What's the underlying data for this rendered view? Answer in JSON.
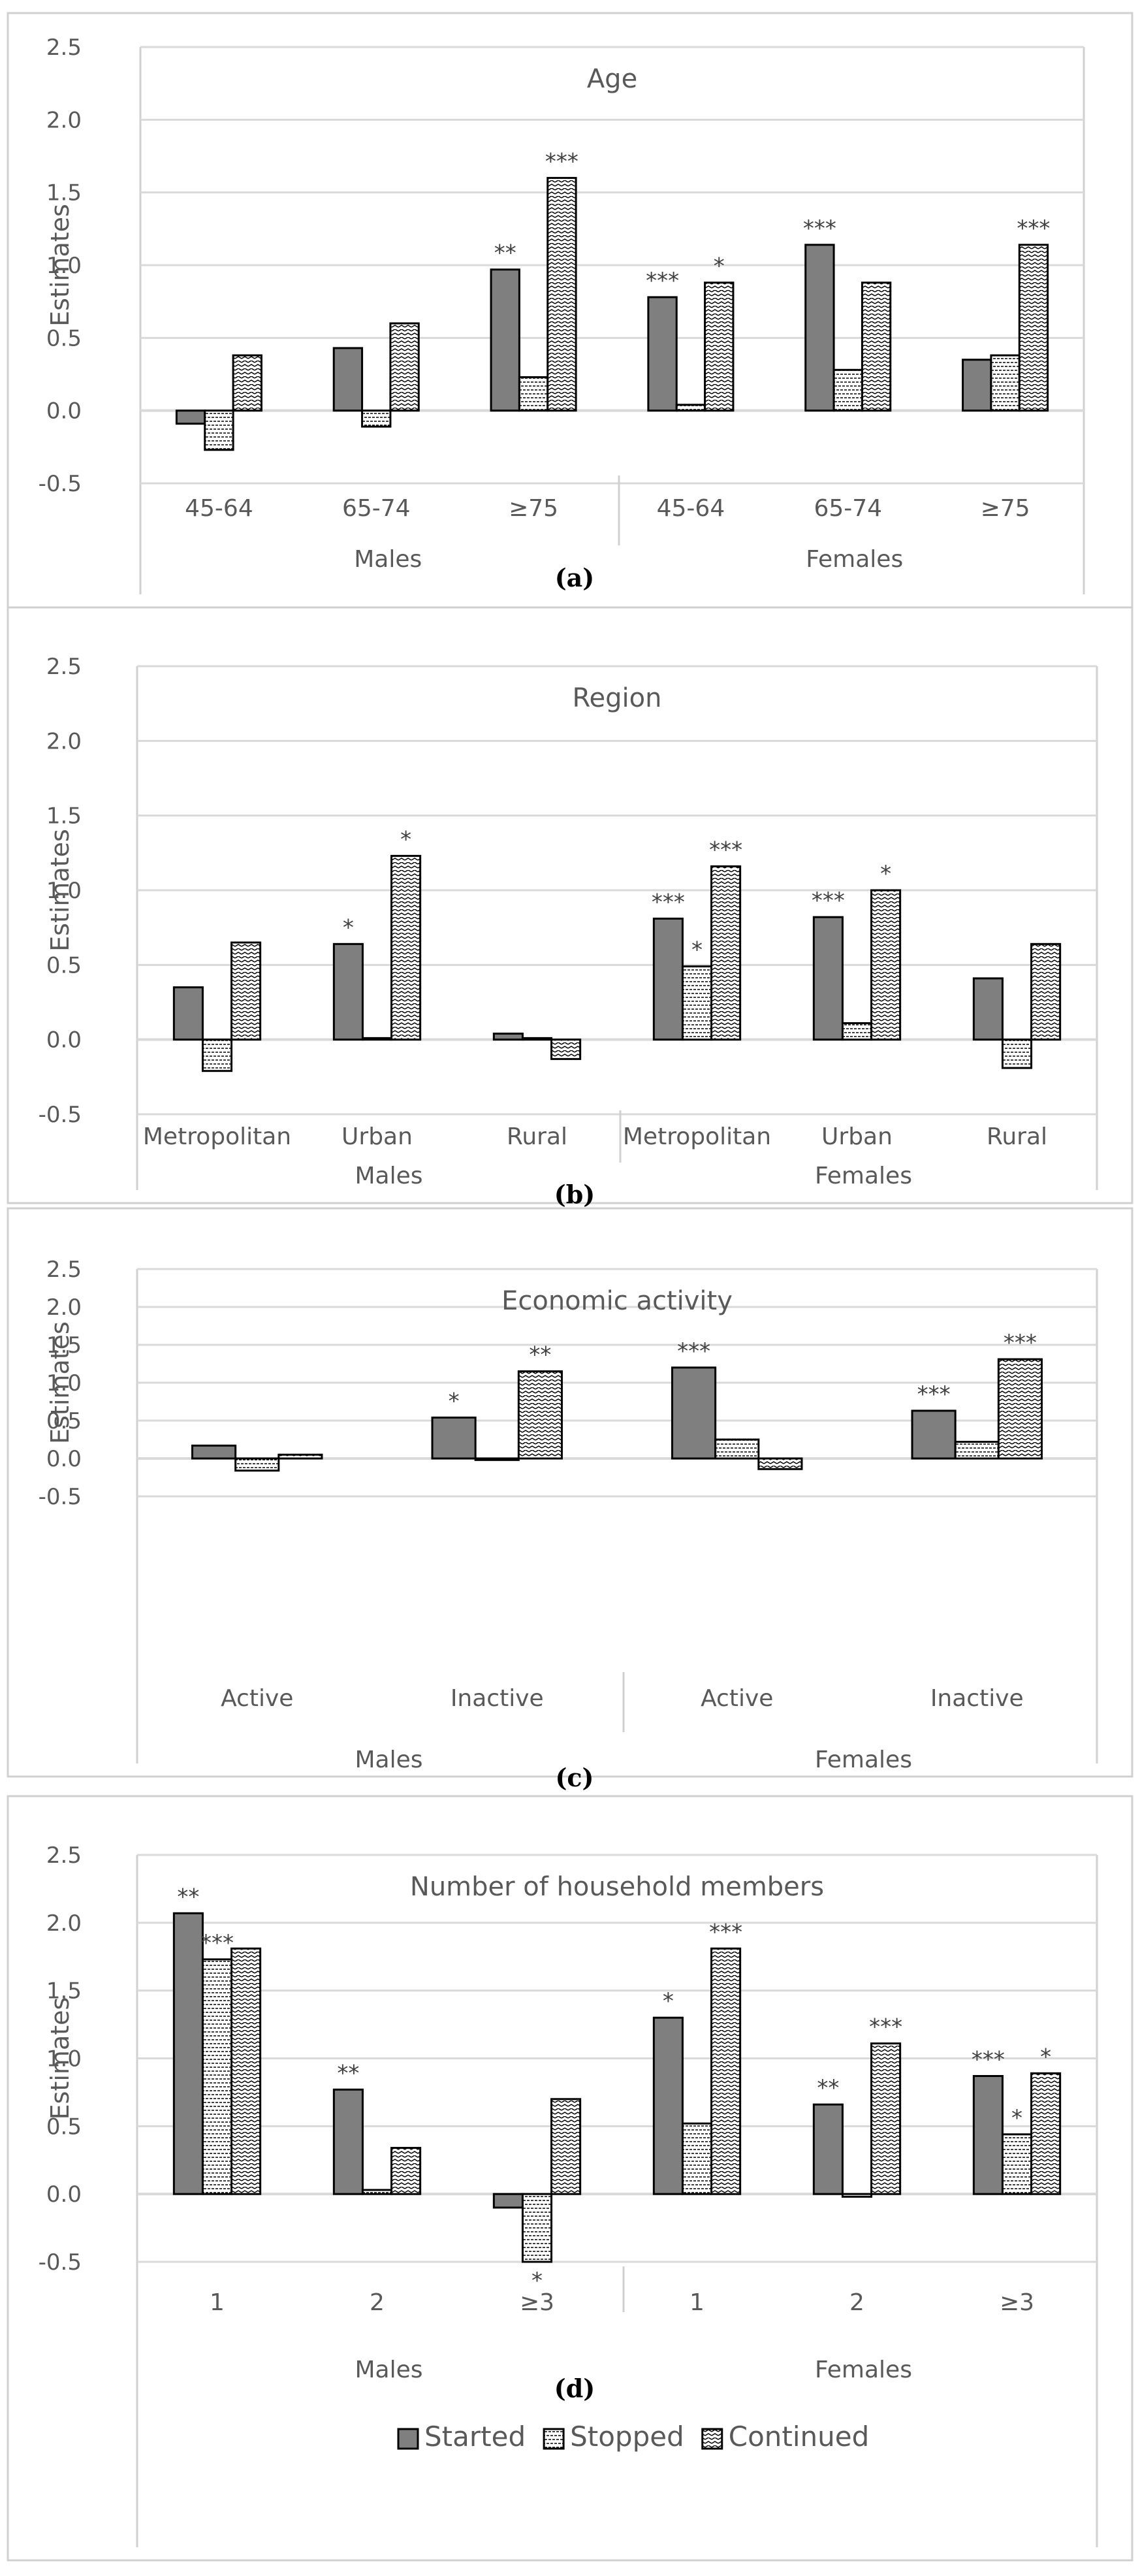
{
  "series": [
    "Started",
    "Stopped",
    "Continued"
  ],
  "legend_entries": [
    "Started",
    "Stopped",
    "Continued"
  ],
  "colors": {
    "started": "#7f7f7f",
    "frame": "#d0d0d0",
    "grid": "#d9d9d9",
    "text": "#595959"
  },
  "chart_data": [
    {
      "type": "bar",
      "title": "Age",
      "sublabel": "(a)",
      "ylabel": "Estimates",
      "ylim": [
        -0.5,
        2.5
      ],
      "yticks": [
        "2.5",
        "2.0",
        "1.5",
        "1.0",
        "0.5",
        "0.0",
        "-0.5"
      ],
      "groups": [
        "Males",
        "Females"
      ],
      "categories": [
        "45-64",
        "65-74",
        "≥75",
        "45-64",
        "65-74",
        "≥75"
      ],
      "values": [
        [
          -0.09,
          -0.27,
          0.38
        ],
        [
          0.43,
          -0.11,
          0.6
        ],
        [
          0.97,
          0.23,
          1.6
        ],
        [
          0.78,
          0.04,
          0.88
        ],
        [
          1.14,
          0.28,
          0.88
        ],
        [
          0.35,
          0.38,
          1.14
        ]
      ],
      "sig": [
        [
          "",
          "",
          ""
        ],
        [
          "",
          "",
          ""
        ],
        [
          "**",
          "",
          "***"
        ],
        [
          "***",
          "",
          "*"
        ],
        [
          "***",
          "",
          ""
        ],
        [
          "",
          "",
          "***"
        ]
      ]
    },
    {
      "type": "bar",
      "title": "Region",
      "sublabel": "(b)",
      "ylabel": "Estimates",
      "ylim": [
        -0.5,
        2.5
      ],
      "yticks": [
        "2.5",
        "2.0",
        "1.5",
        "1.0",
        "0.5",
        "0.0",
        "-0.5"
      ],
      "groups": [
        "Males",
        "Females"
      ],
      "categories": [
        "Metropolitan",
        "Urban",
        "Rural",
        "Metropolitan",
        "Urban",
        "Rural"
      ],
      "values": [
        [
          0.35,
          -0.21,
          0.65
        ],
        [
          0.64,
          0.01,
          1.23
        ],
        [
          0.04,
          0.01,
          -0.13
        ],
        [
          0.81,
          0.49,
          1.16
        ],
        [
          0.82,
          0.11,
          1.0
        ],
        [
          0.41,
          -0.19,
          0.64
        ]
      ],
      "sig": [
        [
          "",
          "",
          ""
        ],
        [
          "*",
          "",
          "*"
        ],
        [
          "",
          "",
          ""
        ],
        [
          "***",
          "*",
          "***"
        ],
        [
          "***",
          "",
          "*"
        ],
        [
          "",
          "",
          ""
        ]
      ]
    },
    {
      "type": "bar",
      "title": "Economic activity",
      "sublabel": "(c)",
      "ylabel": "Estimates",
      "ylim": [
        -0.5,
        2.5
      ],
      "yticks": [
        "2.5",
        "2.0",
        "1.5",
        "1.0",
        "0.5",
        "0.0",
        "-0.5"
      ],
      "groups": [
        "Males",
        "Females"
      ],
      "categories": [
        "Active",
        "Inactive",
        "Active",
        "Inactive"
      ],
      "values": [
        [
          0.17,
          -0.16,
          0.05
        ],
        [
          0.54,
          -0.02,
          1.15
        ],
        [
          1.2,
          0.25,
          -0.14
        ],
        [
          0.63,
          0.22,
          1.31
        ]
      ],
      "sig": [
        [
          "",
          "",
          ""
        ],
        [
          "*",
          "",
          "**"
        ],
        [
          "***",
          "",
          ""
        ],
        [
          "***",
          "",
          "***"
        ]
      ]
    },
    {
      "type": "bar",
      "title": "Number of household members",
      "sublabel": "(d)",
      "ylabel": "Estimates",
      "ylim": [
        -0.5,
        2.5
      ],
      "yticks": [
        "2.5",
        "2.0",
        "1.5",
        "1.0",
        "0.5",
        "0.0",
        "-0.5"
      ],
      "groups": [
        "Males",
        "Females"
      ],
      "categories": [
        "1",
        "2",
        "≥3",
        "1",
        "2",
        "≥3"
      ],
      "values": [
        [
          2.07,
          1.73,
          1.81
        ],
        [
          0.77,
          0.03,
          0.34
        ],
        [
          -0.1,
          -0.5,
          0.7
        ],
        [
          1.3,
          0.52,
          1.81
        ],
        [
          0.66,
          -0.02,
          1.11
        ],
        [
          0.87,
          0.44,
          0.89
        ]
      ],
      "sig": [
        [
          "**",
          "***",
          ""
        ],
        [
          "**",
          "",
          ""
        ],
        [
          "",
          "*",
          ""
        ],
        [
          "*",
          "",
          "***"
        ],
        [
          "**",
          "",
          "***"
        ],
        [
          "***",
          "*",
          "*"
        ]
      ]
    }
  ]
}
